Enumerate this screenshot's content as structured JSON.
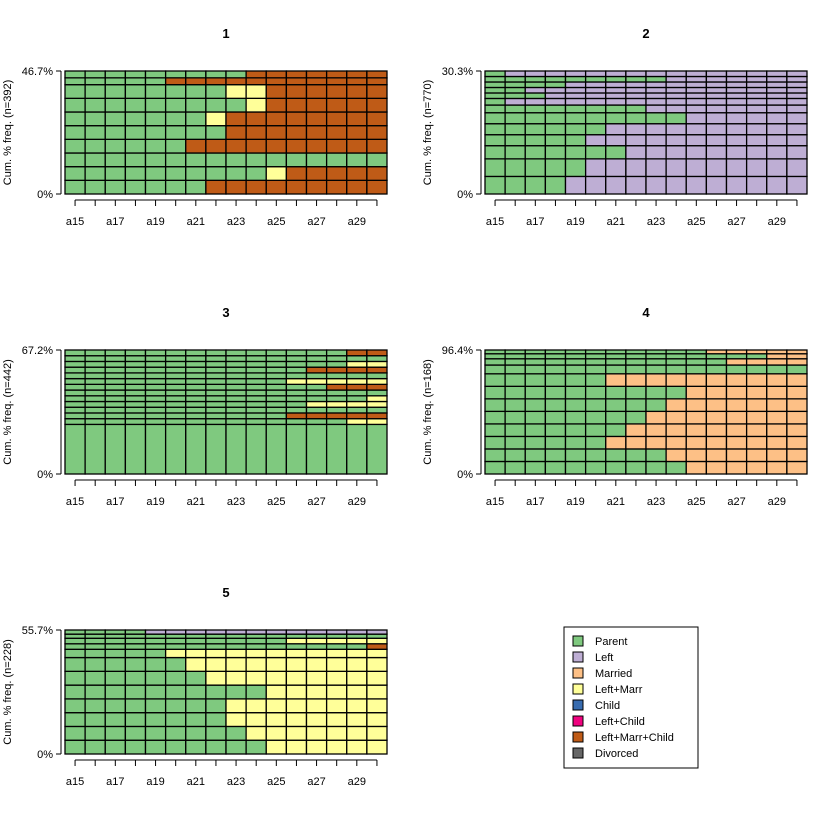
{
  "chart_data": {
    "type": "sequence-frequency",
    "tick_labels": [
      "a15",
      "a17",
      "a19",
      "a21",
      "a23",
      "a25",
      "a27",
      "a29"
    ],
    "states": [
      {
        "name": "Parent",
        "color": "#7FC97F"
      },
      {
        "name": "Left",
        "color": "#BEAED4"
      },
      {
        "name": "Married",
        "color": "#FDC086"
      },
      {
        "name": "Left+Marr",
        "color": "#FFFF99"
      },
      {
        "name": "Child",
        "color": "#386CB0"
      },
      {
        "name": "Left+Child",
        "color": "#F0027F"
      },
      {
        "name": "Left+Marr+Child",
        "color": "#BF5B17"
      },
      {
        "name": "Divorced",
        "color": "#666666"
      }
    ],
    "panels": [
      {
        "title": "1",
        "ylabel": "Cum. % freq. (n=392)",
        "ymax_label": "46.7%",
        "ymin_label": "0%",
        "sequences": [
          {
            "height": 1,
            "segments": [
              [
                "Parent",
                7
              ],
              [
                "Left+Marr+Child",
                9
              ]
            ]
          },
          {
            "height": 1,
            "segments": [
              [
                "Parent",
                10
              ],
              [
                "Left+Marr",
                1
              ],
              [
                "Left+Marr+Child",
                5
              ]
            ]
          },
          {
            "height": 1,
            "segments": [
              [
                "Parent",
                16
              ]
            ]
          },
          {
            "height": 1,
            "segments": [
              [
                "Parent",
                6
              ],
              [
                "Left+Marr+Child",
                10
              ]
            ]
          },
          {
            "height": 1,
            "segments": [
              [
                "Parent",
                8
              ],
              [
                "Left+Marr+Child",
                8
              ]
            ]
          },
          {
            "height": 1,
            "segments": [
              [
                "Parent",
                7
              ],
              [
                "Left+Marr",
                1
              ],
              [
                "Left+Marr+Child",
                8
              ]
            ]
          },
          {
            "height": 1,
            "segments": [
              [
                "Parent",
                9
              ],
              [
                "Left+Marr",
                1
              ],
              [
                "Left+Marr+Child",
                6
              ]
            ]
          },
          {
            "height": 1,
            "segments": [
              [
                "Parent",
                8
              ],
              [
                "Left+Marr",
                2
              ],
              [
                "Left+Marr+Child",
                6
              ]
            ]
          },
          {
            "height": 0.5,
            "segments": [
              [
                "Parent",
                5
              ],
              [
                "Left+Marr+Child",
                11
              ]
            ]
          },
          {
            "height": 0.5,
            "segments": [
              [
                "Parent",
                9
              ],
              [
                "Left+Marr+Child",
                7
              ]
            ]
          }
        ]
      },
      {
        "title": "2",
        "ylabel": "Cum. % freq. (n=770)",
        "ymax_label": "30.3%",
        "ymin_label": "0%",
        "sequences": [
          {
            "height": 1.6,
            "segments": [
              [
                "Parent",
                4
              ],
              [
                "Left",
                12
              ]
            ]
          },
          {
            "height": 1.6,
            "segments": [
              [
                "Parent",
                5
              ],
              [
                "Left",
                11
              ]
            ]
          },
          {
            "height": 1.2,
            "segments": [
              [
                "Parent",
                7
              ],
              [
                "Left",
                9
              ]
            ]
          },
          {
            "height": 1,
            "segments": [
              [
                "Parent",
                5
              ],
              [
                "Left",
                11
              ]
            ]
          },
          {
            "height": 1,
            "segments": [
              [
                "Parent",
                6
              ],
              [
                "Left",
                10
              ]
            ]
          },
          {
            "height": 1,
            "segments": [
              [
                "Parent",
                10
              ],
              [
                "Left",
                6
              ]
            ]
          },
          {
            "height": 0.7,
            "segments": [
              [
                "Parent",
                8
              ],
              [
                "Left",
                8
              ]
            ]
          },
          {
            "height": 0.6,
            "segments": [
              [
                "Parent",
                1
              ],
              [
                "Left",
                15
              ]
            ]
          },
          {
            "height": 0.5,
            "segments": [
              [
                "Parent",
                3
              ],
              [
                "Left",
                13
              ]
            ]
          },
          {
            "height": 0.5,
            "segments": [
              [
                "Parent",
                2
              ],
              [
                "Left",
                14
              ]
            ]
          },
          {
            "height": 0.5,
            "segments": [
              [
                "Parent",
                4
              ],
              [
                "Left",
                12
              ]
            ]
          },
          {
            "height": 0.5,
            "segments": [
              [
                "Parent",
                9
              ],
              [
                "Left",
                7
              ]
            ]
          },
          {
            "height": 0.5,
            "segments": [
              [
                "Parent",
                1
              ],
              [
                "Left",
                15
              ]
            ]
          }
        ]
      },
      {
        "title": "3",
        "ylabel": "Cum. % freq. (n=442)",
        "ymax_label": "67.2%",
        "ymin_label": "0%",
        "sequences": [
          {
            "height": 5.2,
            "segments": [
              [
                "Parent",
                16
              ]
            ]
          },
          {
            "height": 0.6,
            "segments": [
              [
                "Parent",
                14
              ],
              [
                "Left+Marr",
                2
              ]
            ]
          },
          {
            "height": 0.6,
            "segments": [
              [
                "Parent",
                11
              ],
              [
                "Left+Marr+Child",
                5
              ]
            ]
          },
          {
            "height": 0.6,
            "segments": [
              [
                "Parent",
                16
              ]
            ]
          },
          {
            "height": 0.6,
            "segments": [
              [
                "Parent",
                12
              ],
              [
                "Left+Marr",
                4
              ]
            ]
          },
          {
            "height": 0.6,
            "segments": [
              [
                "Parent",
                15
              ],
              [
                "Left+Marr",
                1
              ]
            ]
          },
          {
            "height": 0.6,
            "segments": [
              [
                "Parent",
                16
              ]
            ]
          },
          {
            "height": 0.6,
            "segments": [
              [
                "Parent",
                13
              ],
              [
                "Left+Marr+Child",
                3
              ]
            ]
          },
          {
            "height": 0.6,
            "segments": [
              [
                "Parent",
                11
              ],
              [
                "Left+Marr",
                5
              ]
            ]
          },
          {
            "height": 0.6,
            "segments": [
              [
                "Parent",
                16
              ]
            ]
          },
          {
            "height": 0.6,
            "segments": [
              [
                "Parent",
                12
              ],
              [
                "Left+Marr+Child",
                4
              ]
            ]
          },
          {
            "height": 0.6,
            "segments": [
              [
                "Parent",
                14
              ],
              [
                "Left+Marr",
                2
              ]
            ]
          },
          {
            "height": 0.6,
            "segments": [
              [
                "Parent",
                16
              ]
            ]
          },
          {
            "height": 0.6,
            "segments": [
              [
                "Parent",
                14
              ],
              [
                "Left+Marr+Child",
                2
              ]
            ]
          }
        ]
      },
      {
        "title": "4",
        "ylabel": "Cum. % freq. (n=168)",
        "ymax_label": "96.4%",
        "ymin_label": "0%",
        "sequences": [
          {
            "height": 1,
            "segments": [
              [
                "Parent",
                10
              ],
              [
                "Married",
                6
              ]
            ]
          },
          {
            "height": 1,
            "segments": [
              [
                "Parent",
                9
              ],
              [
                "Married",
                7
              ]
            ]
          },
          {
            "height": 1,
            "segments": [
              [
                "Parent",
                6
              ],
              [
                "Married",
                10
              ]
            ]
          },
          {
            "height": 1,
            "segments": [
              [
                "Parent",
                7
              ],
              [
                "Married",
                9
              ]
            ]
          },
          {
            "height": 1,
            "segments": [
              [
                "Parent",
                8
              ],
              [
                "Married",
                8
              ]
            ]
          },
          {
            "height": 1,
            "segments": [
              [
                "Parent",
                9
              ],
              [
                "Married",
                7
              ]
            ]
          },
          {
            "height": 1,
            "segments": [
              [
                "Parent",
                10
              ],
              [
                "Married",
                6
              ]
            ]
          },
          {
            "height": 1,
            "segments": [
              [
                "Parent",
                6
              ],
              [
                "Married",
                10
              ]
            ]
          },
          {
            "height": 0.7,
            "segments": [
              [
                "Parent",
                16
              ]
            ]
          },
          {
            "height": 0.5,
            "segments": [
              [
                "Parent",
                12
              ],
              [
                "Married",
                4
              ]
            ]
          },
          {
            "height": 0.4,
            "segments": [
              [
                "Parent",
                14
              ],
              [
                "Married",
                2
              ]
            ]
          },
          {
            "height": 0.3,
            "segments": [
              [
                "Parent",
                11
              ],
              [
                "Married",
                5
              ]
            ]
          }
        ]
      },
      {
        "title": "5",
        "ylabel": "Cum. % freq. (n=228)",
        "ymax_label": "55.7%",
        "ymin_label": "0%",
        "sequences": [
          {
            "height": 1,
            "segments": [
              [
                "Parent",
                10
              ],
              [
                "Left+Marr",
                6
              ]
            ]
          },
          {
            "height": 1,
            "segments": [
              [
                "Parent",
                9
              ],
              [
                "Left+Marr",
                7
              ]
            ]
          },
          {
            "height": 1,
            "segments": [
              [
                "Parent",
                8
              ],
              [
                "Left+Marr",
                8
              ]
            ]
          },
          {
            "height": 1,
            "segments": [
              [
                "Parent",
                8
              ],
              [
                "Left+Marr",
                8
              ]
            ]
          },
          {
            "height": 1,
            "segments": [
              [
                "Parent",
                10
              ],
              [
                "Left+Marr",
                6
              ]
            ]
          },
          {
            "height": 1,
            "segments": [
              [
                "Parent",
                7
              ],
              [
                "Left+Marr",
                9
              ]
            ]
          },
          {
            "height": 1,
            "segments": [
              [
                "Parent",
                6
              ],
              [
                "Left+Marr",
                10
              ]
            ]
          },
          {
            "height": 0.6,
            "segments": [
              [
                "Parent",
                5
              ],
              [
                "Left+Marr",
                11
              ]
            ]
          },
          {
            "height": 0.4,
            "segments": [
              [
                "Parent",
                15
              ],
              [
                "Left+Marr+Child",
                1
              ]
            ]
          },
          {
            "height": 0.4,
            "segments": [
              [
                "Parent",
                11
              ],
              [
                "Left+Marr",
                5
              ]
            ]
          },
          {
            "height": 0.3,
            "segments": [
              [
                "Parent",
                16
              ]
            ]
          },
          {
            "height": 0.3,
            "segments": [
              [
                "Parent",
                4
              ],
              [
                "Left",
                12
              ]
            ]
          }
        ]
      }
    ],
    "legend": {
      "placement": "bottom-right",
      "items": [
        "Parent",
        "Left",
        "Married",
        "Left+Marr",
        "Child",
        "Left+Child",
        "Left+Marr+Child",
        "Divorced"
      ]
    }
  }
}
